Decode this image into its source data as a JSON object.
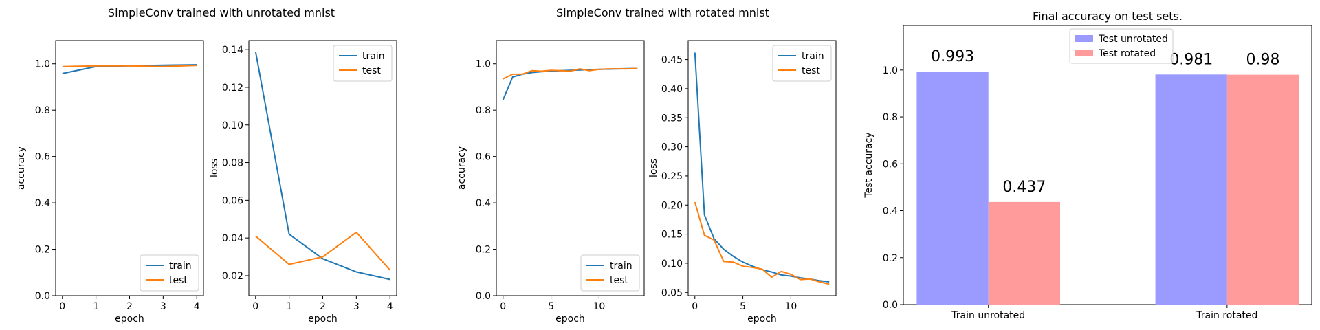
{
  "suptitles": [
    "SimpleConv trained with unrotated mnist",
    "SimpleConv trained with rotated mnist"
  ],
  "colors": {
    "train": "#1f77b4",
    "test": "#ff7f0e",
    "bar_unrotated": "#9b9bff",
    "bar_rotated": "#ff9b9b"
  },
  "chart_data": [
    {
      "id": "unrot-acc",
      "type": "line",
      "xlabel": "epoch",
      "ylabel": "accuracy",
      "xlim": [
        -0.2,
        4.2
      ],
      "ylim": [
        0,
        1.1
      ],
      "xticks": [
        0,
        1,
        2,
        3,
        4
      ],
      "yticks": [
        0.0,
        0.2,
        0.4,
        0.6,
        0.8,
        1.0
      ],
      "ytick_labels": [
        "0.0",
        "0.2",
        "0.4",
        "0.6",
        "0.8",
        "1.0"
      ],
      "legend_loc": "lower right",
      "series": [
        {
          "name": "train",
          "color": "#1f77b4",
          "x": [
            0,
            1,
            2,
            3,
            4
          ],
          "y": [
            0.958,
            0.988,
            0.991,
            0.994,
            0.996
          ]
        },
        {
          "name": "test",
          "color": "#ff7f0e",
          "x": [
            0,
            1,
            2,
            3,
            4
          ],
          "y": [
            0.988,
            0.991,
            0.991,
            0.988,
            0.993
          ]
        }
      ]
    },
    {
      "id": "unrot-loss",
      "type": "line",
      "xlabel": "epoch",
      "ylabel": "loss",
      "xlim": [
        -0.2,
        4.2
      ],
      "ylim": [
        0.0094,
        0.1448
      ],
      "xticks": [
        0,
        1,
        2,
        3,
        4
      ],
      "yticks": [
        0.02,
        0.04,
        0.06,
        0.08,
        0.1,
        0.12,
        0.14
      ],
      "ytick_labels": [
        "0.02",
        "0.04",
        "0.06",
        "0.08",
        "0.10",
        "0.12",
        "0.14"
      ],
      "legend_loc": "upper right",
      "series": [
        {
          "name": "train",
          "color": "#1f77b4",
          "x": [
            0,
            1,
            2,
            3,
            4
          ],
          "y": [
            0.139,
            0.042,
            0.029,
            0.022,
            0.018
          ]
        },
        {
          "name": "test",
          "color": "#ff7f0e",
          "x": [
            0,
            1,
            2,
            3,
            4
          ],
          "y": [
            0.041,
            0.026,
            0.03,
            0.043,
            0.023
          ]
        }
      ]
    },
    {
      "id": "rot-acc",
      "type": "line",
      "xlabel": "epoch",
      "ylabel": "accuracy",
      "xlim": [
        -0.7,
        14.7
      ],
      "ylim": [
        0,
        1.1
      ],
      "xticks": [
        0,
        5,
        10
      ],
      "yticks": [
        0.0,
        0.2,
        0.4,
        0.6,
        0.8,
        1.0
      ],
      "ytick_labels": [
        "0.0",
        "0.2",
        "0.4",
        "0.6",
        "0.8",
        "1.0"
      ],
      "legend_loc": "lower right",
      "series": [
        {
          "name": "train",
          "color": "#1f77b4",
          "x": [
            0,
            1,
            2,
            3,
            4,
            5,
            6,
            7,
            8,
            9,
            10,
            11,
            12,
            13,
            14
          ],
          "y": [
            0.845,
            0.943,
            0.955,
            0.962,
            0.966,
            0.968,
            0.97,
            0.972,
            0.973,
            0.975,
            0.976,
            0.977,
            0.978,
            0.979,
            0.98
          ]
        },
        {
          "name": "test",
          "color": "#ff7f0e",
          "x": [
            0,
            1,
            2,
            3,
            4,
            5,
            6,
            7,
            8,
            9,
            10,
            11,
            12,
            13,
            14
          ],
          "y": [
            0.935,
            0.955,
            0.955,
            0.97,
            0.968,
            0.972,
            0.97,
            0.968,
            0.978,
            0.97,
            0.976,
            0.978,
            0.978,
            0.978,
            0.98
          ]
        }
      ]
    },
    {
      "id": "rot-loss",
      "type": "line",
      "xlabel": "epoch",
      "ylabel": "loss",
      "xlim": [
        -0.7,
        14.7
      ],
      "ylim": [
        0.0444,
        0.4826
      ],
      "xticks": [
        0,
        5,
        10
      ],
      "yticks": [
        0.05,
        0.1,
        0.15,
        0.2,
        0.25,
        0.3,
        0.35,
        0.4,
        0.45
      ],
      "ytick_labels": [
        "0.05",
        "0.10",
        "0.15",
        "0.20",
        "0.25",
        "0.30",
        "0.35",
        "0.40",
        "0.45"
      ],
      "legend_loc": "upper right",
      "series": [
        {
          "name": "train",
          "color": "#1f77b4",
          "x": [
            0,
            1,
            2,
            3,
            4,
            5,
            6,
            7,
            8,
            9,
            10,
            11,
            12,
            13,
            14
          ],
          "y": [
            0.462,
            0.183,
            0.142,
            0.124,
            0.112,
            0.102,
            0.095,
            0.089,
            0.085,
            0.08,
            0.078,
            0.075,
            0.073,
            0.07,
            0.068
          ]
        },
        {
          "name": "test",
          "color": "#ff7f0e",
          "x": [
            0,
            1,
            2,
            3,
            4,
            5,
            6,
            7,
            8,
            9,
            10,
            11,
            12,
            13,
            14
          ],
          "y": [
            0.205,
            0.148,
            0.14,
            0.103,
            0.102,
            0.095,
            0.093,
            0.09,
            0.076,
            0.086,
            0.081,
            0.072,
            0.073,
            0.068,
            0.064
          ]
        }
      ]
    },
    {
      "id": "final-acc",
      "type": "bar",
      "title": "Final accuracy on test sets.",
      "ylabel": "Test accuracy",
      "categories": [
        "Train unrotated",
        "Train rotated"
      ],
      "ylim": [
        0,
        1.19
      ],
      "yticks": [
        0.0,
        0.2,
        0.4,
        0.6,
        0.8,
        1.0
      ],
      "ytick_labels": [
        "0.0",
        "0.2",
        "0.4",
        "0.6",
        "0.8",
        "1.0"
      ],
      "legend_loc": "upper center",
      "value_labels": [
        [
          "0.993",
          "0.437"
        ],
        [
          "0.981",
          "0.98"
        ]
      ],
      "series": [
        {
          "name": "Test unrotated",
          "color": "#9b9bff",
          "values": [
            0.993,
            0.981
          ]
        },
        {
          "name": "Test rotated",
          "color": "#ff9b9b",
          "values": [
            0.437,
            0.98
          ]
        }
      ]
    }
  ]
}
